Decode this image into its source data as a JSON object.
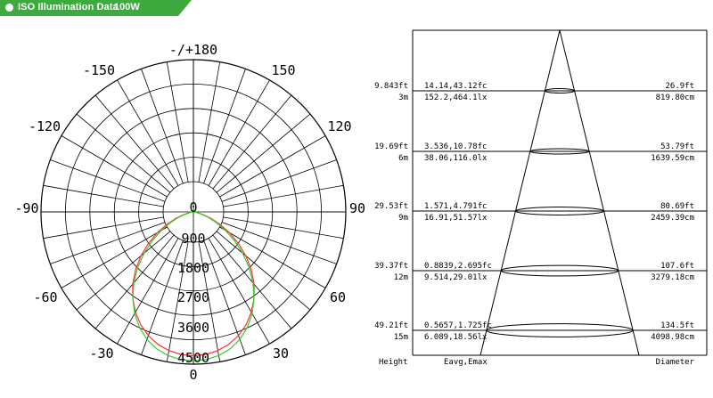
{
  "header": {
    "title": "ISO Illumination  Data",
    "power": "100W",
    "color": "#3daa3f"
  },
  "polar": {
    "angle_labels": {
      "top": "-/+180",
      "tl150": "-150",
      "tr150": "150",
      "tl120": "-120",
      "tr120": "120",
      "l90": "-90",
      "r90": "90",
      "bl60": "-60",
      "br60": "60",
      "bl30": "-30",
      "br30": "30",
      "bottom": "0",
      "center": "0"
    },
    "radial_labels": [
      "900",
      "1800",
      "2700",
      "3600",
      "4500"
    ],
    "curve_colors": {
      "c0": "#ff3333",
      "c90": "#33cc33"
    },
    "curve_c0": [
      [
        0,
        4250
      ],
      [
        5,
        4230
      ],
      [
        10,
        4160
      ],
      [
        15,
        4050
      ],
      [
        20,
        3890
      ],
      [
        25,
        3680
      ],
      [
        30,
        3420
      ],
      [
        35,
        3120
      ],
      [
        40,
        2790
      ],
      [
        45,
        2420
      ],
      [
        50,
        2020
      ],
      [
        55,
        1620
      ],
      [
        60,
        1230
      ],
      [
        65,
        860
      ],
      [
        70,
        540
      ],
      [
        75,
        290
      ],
      [
        80,
        120
      ],
      [
        85,
        40
      ],
      [
        90,
        0
      ]
    ],
    "curve_c90": [
      [
        0,
        4400
      ],
      [
        5,
        4380
      ],
      [
        10,
        4310
      ],
      [
        15,
        4190
      ],
      [
        20,
        4010
      ],
      [
        25,
        3770
      ],
      [
        30,
        3470
      ],
      [
        35,
        3120
      ],
      [
        40,
        2740
      ],
      [
        45,
        2330
      ],
      [
        50,
        1900
      ],
      [
        55,
        1480
      ],
      [
        60,
        1090
      ],
      [
        65,
        740
      ],
      [
        70,
        450
      ],
      [
        75,
        230
      ],
      [
        80,
        90
      ],
      [
        85,
        30
      ],
      [
        90,
        0
      ]
    ]
  },
  "cone": {
    "rows": [
      {
        "height_ft": "9.843ft",
        "height_m": "3m",
        "fc": "14.14,43.12fc",
        "lx": "152.2,464.1lx",
        "dia_ft": "26.9ft",
        "dia_cm": "819.80cm"
      },
      {
        "height_ft": "19.69ft",
        "height_m": "6m",
        "fc": "3.536,10.78fc",
        "lx": "38.06,116.0lx",
        "dia_ft": "53.79ft",
        "dia_cm": "1639.59cm"
      },
      {
        "height_ft": "29.53ft",
        "height_m": "9m",
        "fc": "1.571,4.791fc",
        "lx": "16.91,51.57lx",
        "dia_ft": "80.69ft",
        "dia_cm": "2459.39cm"
      },
      {
        "height_ft": "39.37ft",
        "height_m": "12m",
        "fc": "0.8839,2.695fc",
        "lx": "9.514,29.01lx",
        "dia_ft": "107.6ft",
        "dia_cm": "3279.18cm"
      },
      {
        "height_ft": "49.21ft",
        "height_m": "15m",
        "fc": "0.5657,1.725fc",
        "lx": "6.089,18.56lx",
        "dia_ft": "134.5ft",
        "dia_cm": "4098.98cm"
      }
    ],
    "footer": {
      "height": "Height",
      "eavg": "Eavg,Emax",
      "diameter": "Diameter"
    }
  }
}
